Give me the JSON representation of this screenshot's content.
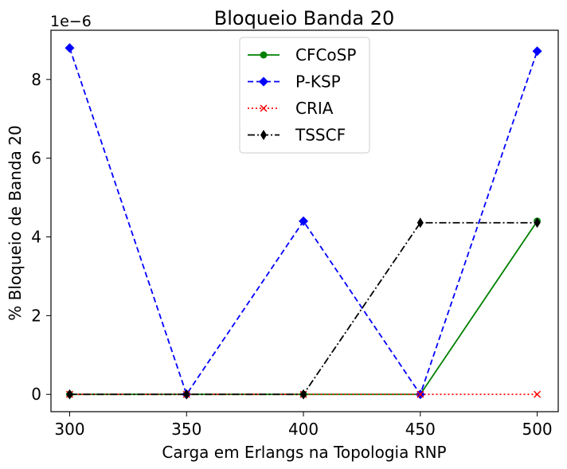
{
  "chart_data": {
    "type": "line",
    "title": "Bloqueio Banda 20",
    "xlabel": "Carga em Erlangs na Topologia RNP",
    "ylabel": "% Bloqueio de Banda 20",
    "y_offset_label": "1e−6",
    "x": [
      300,
      350,
      400,
      450,
      500
    ],
    "x_ticks": [
      "300",
      "350",
      "400",
      "450",
      "500"
    ],
    "y_ticks": [
      "0",
      "2",
      "4",
      "6",
      "8"
    ],
    "y_tick_values": [
      0,
      2,
      4,
      6,
      8
    ],
    "xlim": [
      292,
      509
    ],
    "ylim": [
      -0.44,
      9.25
    ],
    "grid": false,
    "legend_position": "top-center",
    "series": [
      {
        "name": "CFCoSP",
        "values": [
          0,
          0,
          0,
          0,
          4.4
        ],
        "color": "#008000",
        "dash": "solid",
        "marker": "circle"
      },
      {
        "name": "P-KSP",
        "values": [
          8.8,
          0,
          4.4,
          0,
          8.72
        ],
        "color": "#0000ff",
        "dash": "dashed",
        "marker": "diamond"
      },
      {
        "name": "CRIA",
        "values": [
          0,
          0,
          0,
          0,
          0
        ],
        "color": "#ff0000",
        "dash": "dotted",
        "marker": "x"
      },
      {
        "name": "TSSCF",
        "values": [
          0,
          0,
          0,
          4.36,
          4.36
        ],
        "color": "#000000",
        "dash": "dashdot",
        "marker": "thin-diamond"
      }
    ]
  }
}
